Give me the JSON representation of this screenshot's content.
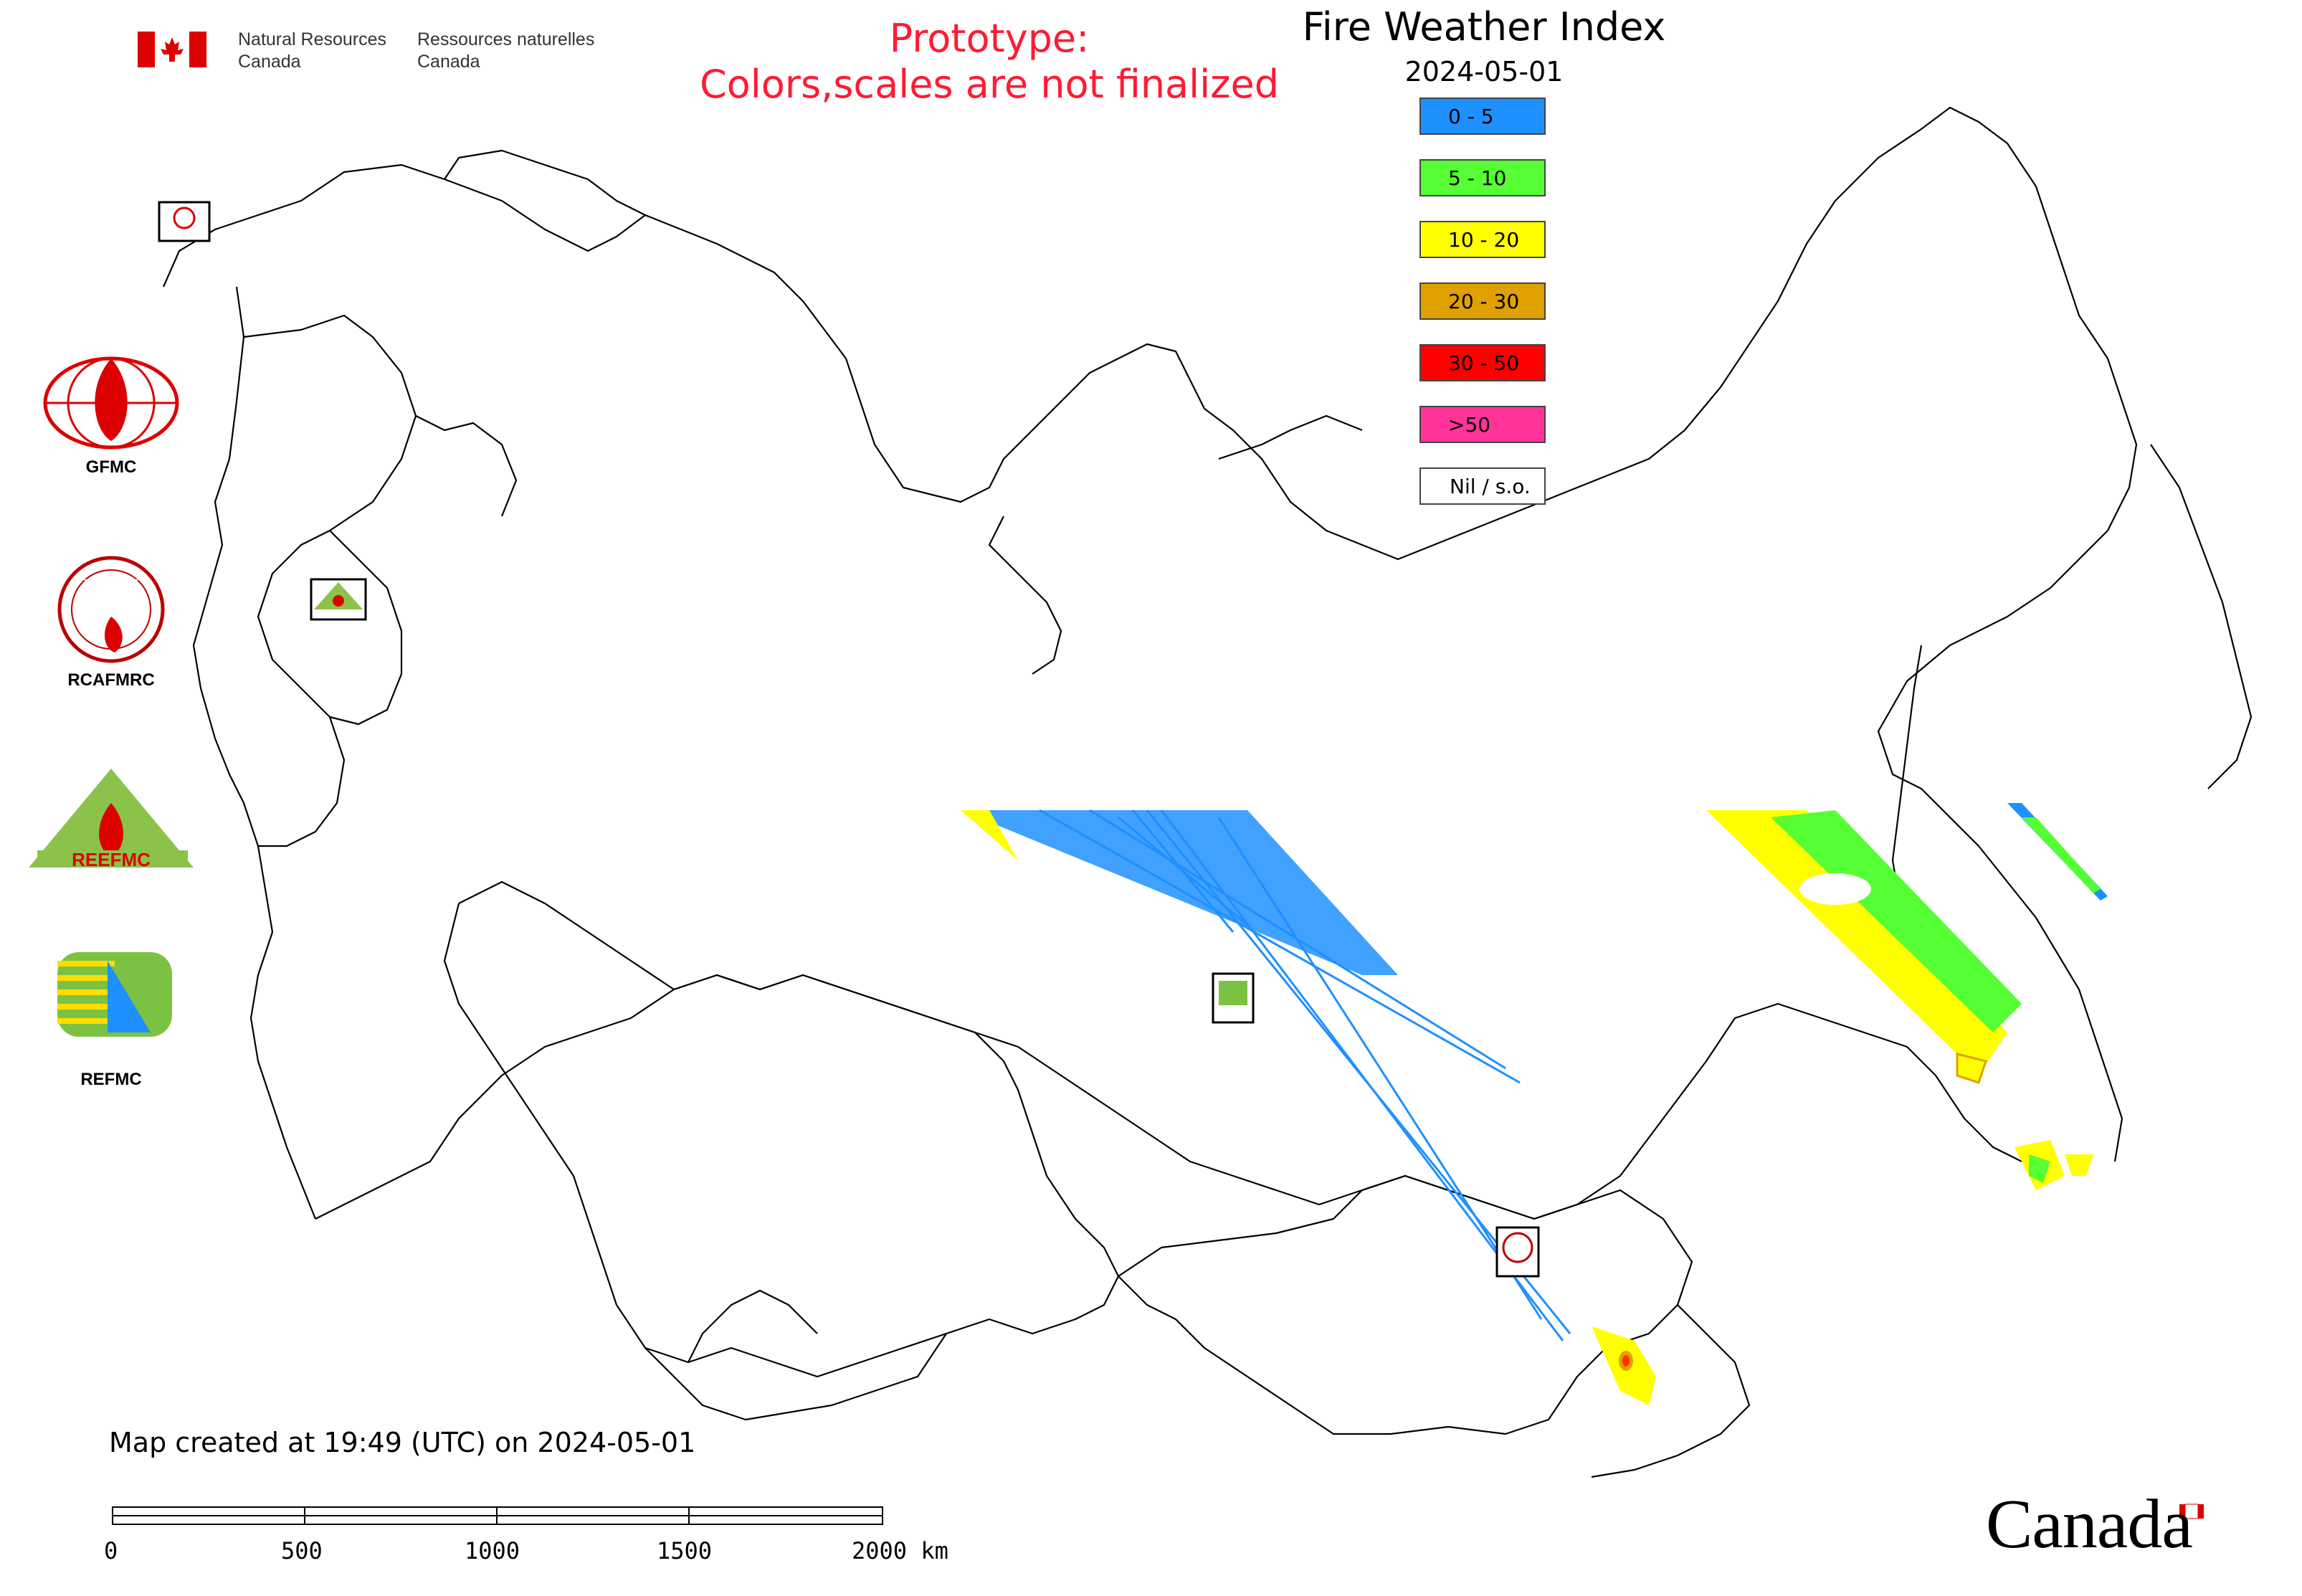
{
  "header": {
    "gov_name_en": [
      "Natural Resources",
      "Canada"
    ],
    "gov_name_fr": [
      "Ressources naturelles",
      "Canada"
    ],
    "prototype_notice": [
      "Prototype:",
      "Colors,scales are not finalized"
    ]
  },
  "map": {
    "title": "Fire Weather Index",
    "date": "2024-05-01"
  },
  "legend": [
    {
      "label": "0 - 5",
      "color": "#1e90ff"
    },
    {
      "label": "5 - 10",
      "color": "#55ff33"
    },
    {
      "label": "10 - 20",
      "color": "#ffff00"
    },
    {
      "label": "20 - 30",
      "color": "#e0a000"
    },
    {
      "label": "30 - 50",
      "color": "#ff0000"
    },
    {
      "label": ">50",
      "color": "#ff3399"
    },
    {
      "label": "Nil / s.o.",
      "color": "#ffffff"
    }
  ],
  "logos": {
    "gfmc": "GFMC",
    "rcafmrc": "RCAFMRC",
    "reefmc": "REEFMC",
    "refmc": "REFMC"
  },
  "footer": {
    "created": "Map created at 19:49 (UTC) on 2024-05-01",
    "scale_labels": [
      "0",
      "500",
      "1000",
      "1500",
      "2000 km"
    ],
    "wordmark": "Canada"
  },
  "icons": {
    "flag": "canada-flag-icon",
    "marker": "center-logo-marker-icon"
  }
}
